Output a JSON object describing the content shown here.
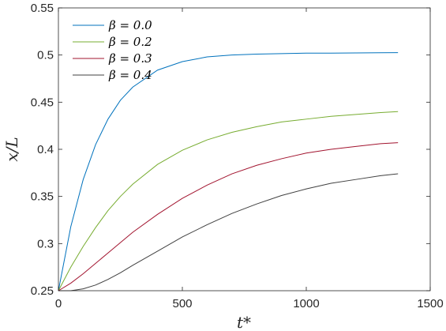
{
  "chart_data": {
    "type": "line",
    "title": "",
    "xlabel": "t*",
    "ylabel": "x/L",
    "xlim": [
      0,
      1500
    ],
    "ylim": [
      0.25,
      0.55
    ],
    "xticks": [
      "0",
      "500",
      "1000",
      "1500"
    ],
    "yticks": [
      "0.25",
      "0.3",
      "0.35",
      "0.4",
      "0.45",
      "0.5",
      "0.55"
    ],
    "grid": false,
    "legend_position": "top-left",
    "x": [
      0,
      50,
      100,
      150,
      200,
      250,
      300,
      400,
      500,
      600,
      700,
      800,
      900,
      1000,
      1100,
      1200,
      1300,
      1370
    ],
    "series": [
      {
        "name": "β = 0.0",
        "color": "#0072BD",
        "values": [
          0.25,
          0.318,
          0.368,
          0.405,
          0.432,
          0.452,
          0.466,
          0.484,
          0.493,
          0.498,
          0.5,
          0.501,
          0.5015,
          0.502,
          0.502,
          0.5022,
          0.5024,
          0.5025
        ]
      },
      {
        "name": "β = 0.2",
        "color": "#77AC30",
        "values": [
          0.25,
          0.275,
          0.297,
          0.317,
          0.335,
          0.35,
          0.363,
          0.384,
          0.399,
          0.41,
          0.418,
          0.424,
          0.429,
          0.432,
          0.435,
          0.437,
          0.439,
          0.44
        ]
      },
      {
        "name": "β = 0.3",
        "color": "#A2142F",
        "values": [
          0.25,
          0.258,
          0.268,
          0.279,
          0.29,
          0.301,
          0.312,
          0.331,
          0.348,
          0.362,
          0.374,
          0.383,
          0.39,
          0.396,
          0.4,
          0.403,
          0.406,
          0.407
        ]
      },
      {
        "name": "β = 0.4",
        "color": "#404040",
        "values": [
          0.25,
          0.25,
          0.252,
          0.256,
          0.262,
          0.269,
          0.277,
          0.292,
          0.307,
          0.32,
          0.332,
          0.342,
          0.351,
          0.358,
          0.364,
          0.368,
          0.372,
          0.374
        ]
      }
    ]
  }
}
